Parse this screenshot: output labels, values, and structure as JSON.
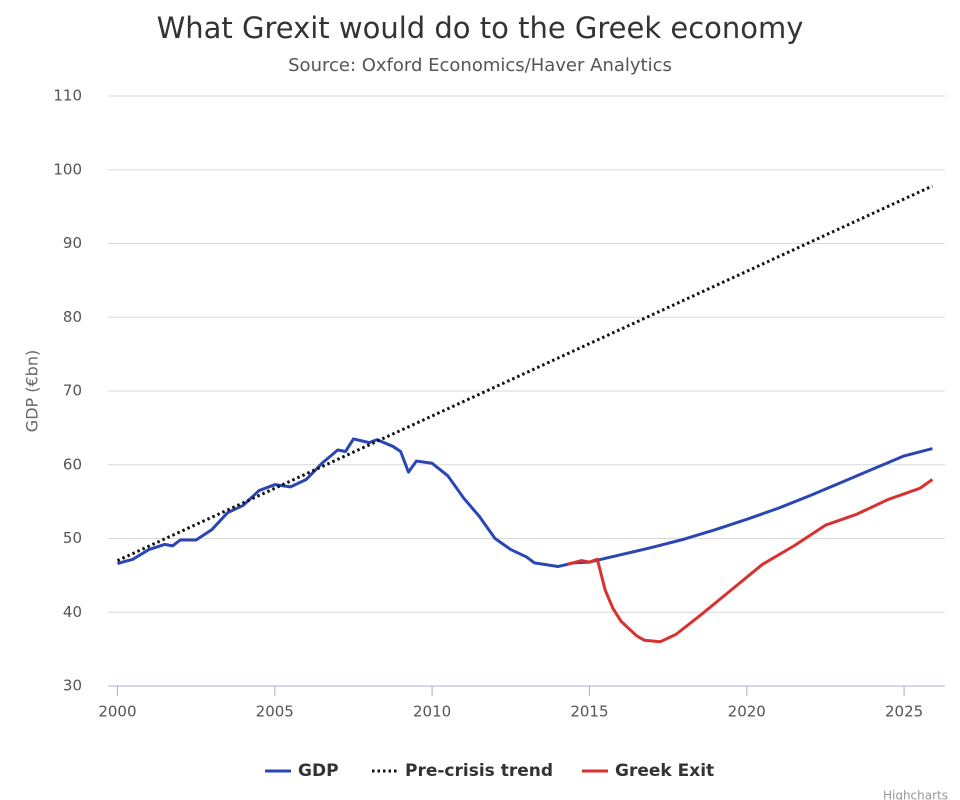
{
  "chart_data": {
    "type": "line",
    "title": "What Grexit would do to the Greek economy",
    "subtitle": "Source: Oxford Economics/Haver Analytics",
    "y_label": "GDP (€bn)",
    "credit": "Highcharts",
    "xlim": [
      1999.7,
      2026.3
    ],
    "xticks": [
      2000,
      2005,
      2010,
      2015,
      2020,
      2025
    ],
    "ylim": [
      30,
      110
    ],
    "yticks": [
      30,
      40,
      50,
      60,
      70,
      80,
      90,
      100,
      110
    ],
    "grid": true,
    "legend": "bottom",
    "series": [
      {
        "name": "GDP",
        "color": "#2a45b5",
        "line_style": "solid",
        "x": [
          2000,
          2000.5,
          2001,
          2001.5,
          2001.75,
          2002,
          2002.5,
          2003,
          2003.5,
          2004,
          2004.5,
          2005,
          2005.5,
          2006,
          2006.5,
          2007,
          2007.25,
          2007.5,
          2008,
          2008.25,
          2008.75,
          2009,
          2009.25,
          2009.5,
          2010,
          2010.5,
          2011,
          2011.5,
          2012,
          2012.5,
          2013,
          2013.25,
          2014,
          2014.5,
          2015,
          2016,
          2017,
          2018,
          2019,
          2020,
          2021,
          2022,
          2023,
          2024,
          2025,
          2025.9
        ],
        "values": [
          46.6,
          47.2,
          48.5,
          49.2,
          49.0,
          49.8,
          49.8,
          51.2,
          53.5,
          54.5,
          56.5,
          57.3,
          57.0,
          58.0,
          60.2,
          62.0,
          61.8,
          63.5,
          63.0,
          63.4,
          62.5,
          61.8,
          59.0,
          60.5,
          60.2,
          58.5,
          55.5,
          53.0,
          50.0,
          48.5,
          47.5,
          46.7,
          46.2,
          46.7,
          46.8,
          47.8,
          48.8,
          49.9,
          51.2,
          52.6,
          54.1,
          55.8,
          57.6,
          59.4,
          61.2,
          62.2
        ]
      },
      {
        "name": "Pre-crisis trend",
        "color": "#111111",
        "line_style": "dotted",
        "x": [
          2000,
          2025.9
        ],
        "values": [
          47.0,
          97.8
        ]
      },
      {
        "name": "Greek Exit",
        "color": "#d9312f",
        "line_style": "solid",
        "x": [
          2014.3,
          2014.75,
          2015.0,
          2015.25,
          2015.5,
          2015.75,
          2016,
          2016.5,
          2016.75,
          2017.25,
          2017.75,
          2018.5,
          2019.5,
          2020.5,
          2021.5,
          2022.5,
          2023.5,
          2024.5,
          2025.5,
          2025.9
        ],
        "values": [
          46.5,
          47.0,
          46.8,
          47.2,
          43.0,
          40.5,
          38.8,
          36.8,
          36.2,
          36.0,
          37.0,
          39.5,
          43.0,
          46.5,
          49.0,
          51.8,
          53.3,
          55.3,
          56.8,
          58.0
        ]
      }
    ]
  }
}
